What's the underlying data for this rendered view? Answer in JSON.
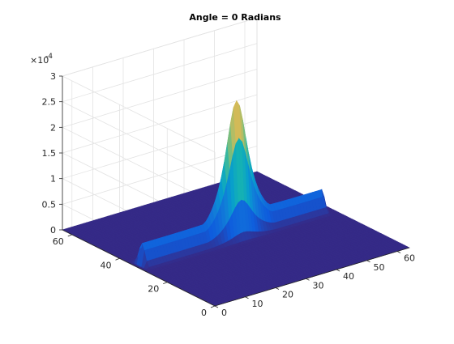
{
  "chart_data": {
    "type": "surface",
    "title": "Angle = 0 Radians",
    "xlabel": "",
    "ylabel": "",
    "zlabel": "",
    "xlim": [
      0,
      60
    ],
    "ylim": [
      0,
      60
    ],
    "zlim": [
      0,
      0.0003
    ],
    "x_ticks": [
      "0",
      "10",
      "20",
      "30",
      "40",
      "50",
      "60"
    ],
    "y_ticks": [
      "0",
      "20",
      "40",
      "60"
    ],
    "z_ticks": [
      "0",
      "0.5",
      "1",
      "1.5",
      "2",
      "2.5",
      "3"
    ],
    "z_exponent_label": "×10",
    "z_exponent": "-4",
    "colormap": "parula",
    "grid": true,
    "surface": {
      "x_range": [
        0,
        64
      ],
      "y_range": [
        0,
        64
      ],
      "peak": {
        "x": 33,
        "y": 33,
        "z": 0.000265
      },
      "ridge_along_x": {
        "y": 33,
        "z_at_edges": 4.2e-05
      },
      "base_z": 0
    }
  }
}
